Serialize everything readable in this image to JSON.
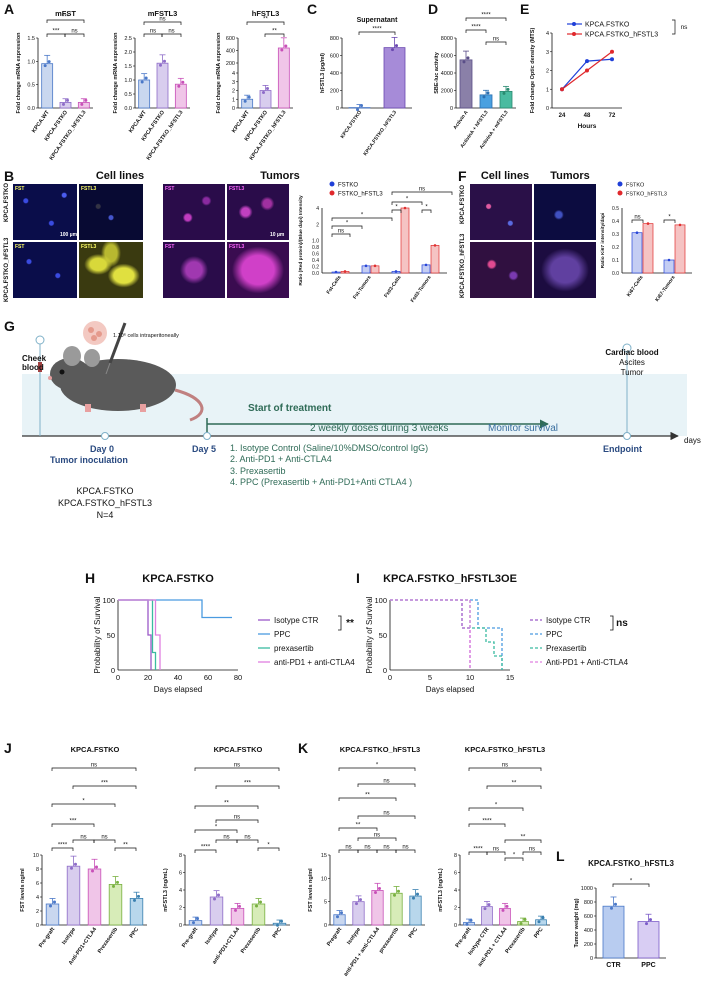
{
  "panels": {
    "A": {
      "letter": "A",
      "charts": [
        {
          "title": "mFST",
          "ylabel": "Fold change mRNA expression",
          "categories": [
            "KPCA.WT",
            "KPCA.FSTKO",
            "KPCA.FSTKO_hFSTL3"
          ],
          "values": [
            0.95,
            0.12,
            0.12
          ],
          "ticks": [
            "0.0",
            "0.5",
            "1.0",
            "1.5"
          ],
          "sig": [
            "***",
            "***",
            "ns"
          ]
        },
        {
          "title": "mFSTL3",
          "ylabel": "Fold change mRNA expression",
          "categories": [
            "KPCA.WT",
            "KPCA.FSTKO",
            "KPCA.FSTKO_hFSTL3"
          ],
          "values": [
            1.0,
            1.6,
            0.85
          ],
          "ticks": [
            "0.0",
            "0.5",
            "1.0",
            "1.5",
            "2.0",
            "2.5"
          ],
          "sig": [
            "ns",
            "ns",
            "ns"
          ]
        },
        {
          "title": "hFSTL3",
          "ylabel": "Fold change mRNA expression",
          "categories": [
            "KPCA.WT",
            "KPCA.FSTKO",
            "KPCA.FSTKO_hFSTL3"
          ],
          "values": [
            1,
            2,
            400
          ],
          "ticks": [
            "0",
            "1",
            "2",
            "3",
            "4",
            "200",
            "400",
            "600"
          ],
          "sig": [
            "**",
            "**",
            "ns"
          ]
        }
      ]
    },
    "C": {
      "letter": "C",
      "title": "Supernatant",
      "ylabel": "hFSTL3 (pg/ml)",
      "categories": [
        "KPCA.FSTKO",
        "KPCA.FSTKO_hFSTL3"
      ],
      "values": [
        5,
        690
      ],
      "ticks": [
        "0",
        "200",
        "400",
        "600",
        "800"
      ],
      "sig": "****"
    },
    "D": {
      "letter": "D",
      "ylabel": "SBE-luc activity",
      "categories": [
        "Activin A",
        "ActivinA + hFSTL3",
        "ActivinA + mFSTL3"
      ],
      "values": [
        5500,
        1500,
        1900
      ],
      "ticks": [
        "0",
        "2000",
        "4000",
        "6000",
        "8000"
      ],
      "sig": [
        "****",
        "****",
        "ns"
      ]
    },
    "E": {
      "letter": "E",
      "ylabel": "Fold change Optic density (MTS)",
      "xlabel": "Hours",
      "x": [
        "24",
        "48",
        "72"
      ],
      "ticks": [
        "0",
        "1",
        "2",
        "3",
        "4"
      ],
      "series": [
        {
          "name": "KPCA.FSTKO",
          "values": [
            1.0,
            2.5,
            2.6
          ]
        },
        {
          "name": "KPCA.FSTKO_hFSTL3",
          "values": [
            1.0,
            2.0,
            3.0
          ]
        }
      ],
      "sig": "ns"
    },
    "B": {
      "letter": "B",
      "cell_lines": "Cell lines",
      "tumors": "Tumors",
      "row1": "KPCA.FSTKO",
      "row2": "KPCA.FSTKO_hFSTL3",
      "fst": "FST",
      "fstl3": "FSTL3",
      "scale1": "100 µm",
      "scale2": "10 µm",
      "chart": {
        "ylabel": "Ratio (Red protein)/(Blue dapi) Intensity",
        "categories": [
          "Fst-Cells",
          "Fst-Tumors",
          "Fstl3-Cells",
          "Fstl3-Tumors"
        ],
        "legend": [
          "FSTKO",
          "FSTKO_hFSTL3"
        ],
        "ticks": [
          "0.0",
          "0.2",
          "0.4",
          "0.6",
          "0.8",
          "1.0",
          "2",
          "4"
        ],
        "sig": [
          "ns",
          "*",
          "*",
          "ns",
          "*",
          "*",
          "*"
        ]
      }
    },
    "F": {
      "letter": "F",
      "cell_lines": "Cell lines",
      "tumors": "Tumors",
      "row1": "KPCA.FSTKO",
      "row2": "KPCA.FSTKO_hFSTL3",
      "chart": {
        "ylabel": "Ratio Ki67 intensity/dapi",
        "categories": [
          "Ki67-Cells",
          "Ki67-Tumors"
        ],
        "legend": [
          "FSTKO",
          "FSTKO_hFSTL3"
        ],
        "ticks": [
          "0.0",
          "0.1",
          "0.2",
          "0.3",
          "0.4",
          "0.5"
        ],
        "sig": [
          "ns",
          "*"
        ]
      }
    },
    "G": {
      "letter": "G",
      "cheek": "Cheek blood",
      "cells": "1.10⁶ cells intraperitoneally",
      "start": "Start of treatment",
      "doses": "2 weekly doses during 3 weeks",
      "monitor": "Monitor survival",
      "cardiac": "Cardiac blood",
      "ascites": "Ascites",
      "tumor": "Tumor",
      "day0": "Day 0",
      "inoculation": "Tumor inoculation",
      "day5": "Day 5",
      "endpoint": "Endpoint",
      "days": "days",
      "treatments": [
        "1. Isotype Control (Saline/10%DMSO/control IgG)",
        "2. Anti-PD1 + Anti-CTLA4",
        "3. Prexasertib",
        "4. PPC (Prexasertib + Anti-PD1+Anti CTLA4 )"
      ],
      "groups": [
        "KPCA.FSTKO",
        "KPCA.FSTKO_hFSTL3",
        "N=4"
      ]
    },
    "H": {
      "letter": "H",
      "title": "KPCA.FSTKO",
      "ylabel": "Probability of Survival",
      "xlabel": "Days elapsed",
      "xticks": [
        "0",
        "20",
        "40",
        "60",
        "80"
      ],
      "yticks": [
        "0",
        "50",
        "100"
      ],
      "legend": [
        "Isotype CTR",
        "PPC",
        "prexasertib",
        "anti-PD1 + anti-CTLA4"
      ],
      "sig": "**"
    },
    "I": {
      "letter": "I",
      "title": "KPCA.FSTKO_hFSTL3OE",
      "ylabel": "Probability of Survival",
      "xlabel": "Days elapsed",
      "xticks": [
        "0",
        "5",
        "10",
        "15"
      ],
      "yticks": [
        "0",
        "50",
        "100"
      ],
      "legend": [
        "Isotype CTR",
        "PPC",
        "Prexasertib",
        "Anti-PD1 + Anti-CTLA4"
      ],
      "sig": "ns"
    },
    "J": {
      "letter": "J",
      "charts": [
        {
          "title": "KPCA.FSTKO",
          "ylabel": "FST levels ng/ml",
          "categories": [
            "Pre-graft",
            "Isotype",
            "Anti-PD1+CTLA4",
            "Prexasertib",
            "PPC"
          ],
          "values": [
            3.0,
            8.4,
            8.0,
            5.8,
            3.8
          ],
          "ticks": [
            "0",
            "2",
            "4",
            "6",
            "8",
            "10"
          ],
          "sig": [
            "****",
            "ns",
            "ns",
            "**",
            "***",
            "*",
            "***",
            "ns"
          ]
        },
        {
          "title": "KPCA.FSTKO",
          "ylabel": "mFSTL3 (ng/mL)",
          "categories": [
            "Pre-graft",
            "Isotype",
            "anti-PD1+CTLA4",
            "Prexasertib",
            "PPC"
          ],
          "values": [
            0.5,
            3.2,
            1.9,
            2.4,
            0.2
          ],
          "ticks": [
            "0",
            "2",
            "4",
            "6",
            "8"
          ],
          "sig": [
            "****",
            "ns",
            "ns",
            "*",
            "*",
            "ns",
            "**",
            "***",
            "ns"
          ]
        }
      ]
    },
    "K": {
      "letter": "K",
      "charts": [
        {
          "title": "KPCA.FSTKO_hFSTL3",
          "ylabel": "FST levels ng/ml",
          "categories": [
            "Pregraft",
            "Isotype",
            "anti-PD1 + anti-CTLA4",
            "prexasertib",
            "PPC"
          ],
          "values": [
            2.2,
            5.0,
            7.4,
            6.8,
            6.2
          ],
          "ticks": [
            "0",
            "5",
            "10",
            "15"
          ],
          "sig": [
            "ns",
            "ns",
            "ns",
            "ns",
            "ns",
            "**",
            "ns",
            "**",
            "ns",
            "*"
          ]
        },
        {
          "title": "KPCA.FSTKO_hFSTL3",
          "ylabel": "mFSTL3 (ng/mL)",
          "categories": [
            "Pre-graft",
            "Isotype CTR",
            "anti-PD1 + CTLA4",
            "Prexasertib",
            "PPC"
          ],
          "values": [
            0.3,
            2.1,
            1.9,
            0.4,
            0.6
          ],
          "ticks": [
            "0",
            "2",
            "4",
            "6",
            "8"
          ],
          "sig": [
            "****",
            "ns",
            "*",
            "ns",
            "**",
            "****",
            "*",
            "**",
            "ns"
          ]
        }
      ]
    },
    "L": {
      "letter": "L",
      "title": "KPCA.FSTKO_hFSTL3",
      "ylabel": "Tumor weight (mg)",
      "categories": [
        "CTR",
        "PPC"
      ],
      "values": [
        740,
        520
      ],
      "ticks": [
        "0",
        "200",
        "400",
        "600",
        "800",
        "1000"
      ],
      "sig": "*"
    }
  }
}
